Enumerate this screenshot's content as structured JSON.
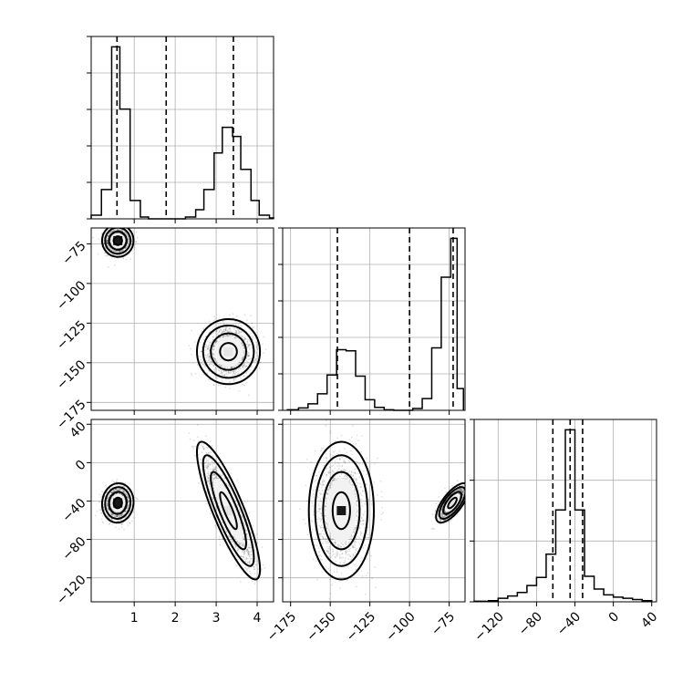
{
  "chart_data": {
    "type": "corner",
    "parameters": [
      "",
      "",
      ""
    ],
    "grid": true,
    "ranges": {
      "p0": [
        -0.05,
        4.4
      ],
      "p1": [
        -180,
        -65
      ],
      "p2": [
        -145,
        45
      ]
    },
    "ticks": {
      "p0": {
        "values": [
          1,
          2,
          3,
          4
        ],
        "labels": [
          "1",
          "2",
          "3",
          "4"
        ]
      },
      "p1_y": {
        "values": [
          -75,
          -100,
          -125,
          -150,
          -175
        ],
        "labels": [
          "−75",
          "−100",
          "−125",
          "−150",
          "−175"
        ]
      },
      "p1_x": {
        "values": [
          -175,
          -150,
          -125,
          -100,
          -75
        ],
        "labels": [
          "−175",
          "−150",
          "−125",
          "−100",
          "−75"
        ]
      },
      "p2_y": {
        "values": [
          40,
          0,
          -40,
          -80,
          -120
        ],
        "labels": [
          "40",
          "0",
          "−40",
          "−80",
          "−120"
        ]
      },
      "p2_x": {
        "values": [
          -120,
          -80,
          -40,
          0,
          40
        ],
        "labels": [
          "−120",
          "−80",
          "−40",
          "0",
          "40"
        ]
      }
    },
    "histograms": [
      {
        "param": "p0",
        "bin_edges": [
          -0.05,
          0.2,
          0.45,
          0.65,
          0.9,
          1.15,
          1.35,
          1.6,
          1.8,
          2.05,
          2.25,
          2.5,
          2.7,
          2.95,
          3.15,
          3.4,
          3.6,
          3.85,
          4.05,
          4.3,
          4.4
        ],
        "counts": [
          0.02,
          0.16,
          0.94,
          0.6,
          0.1,
          0.01,
          0,
          0,
          0,
          0,
          0.01,
          0.05,
          0.16,
          0.36,
          0.5,
          0.45,
          0.27,
          0.1,
          0.02,
          0.005
        ],
        "quantiles": [
          0.58,
          1.78,
          3.42
        ]
      },
      {
        "param": "p1",
        "bin_edges": [
          -177,
          -170,
          -164,
          -158,
          -152,
          -146,
          -140,
          -134,
          -128,
          -122,
          -116,
          -110,
          -104,
          -98,
          -92,
          -86,
          -80,
          -74,
          -70,
          -66
        ],
        "counts": [
          0.01,
          0.04,
          0.11,
          0.28,
          0.6,
          1.03,
          1.01,
          0.58,
          0.18,
          0.05,
          0.01,
          0,
          0,
          0.03,
          0.2,
          1.06,
          2.26,
          2.92,
          0.37
        ],
        "quantiles": [
          -145.5,
          -100,
          -72.5
        ]
      },
      {
        "param": "p2",
        "bin_edges": [
          -145,
          -130,
          -120,
          -110,
          -100,
          -90,
          -80,
          -70,
          -60,
          -50,
          -40,
          -30,
          -20,
          -10,
          0,
          10,
          20,
          30,
          40
        ],
        "counts": [
          0.005,
          0.01,
          0.03,
          0.05,
          0.08,
          0.14,
          0.21,
          0.41,
          0.79,
          1.48,
          0.79,
          0.22,
          0.11,
          0.06,
          0.04,
          0.03,
          0.02,
          0.01
        ],
        "quantiles": [
          -63,
          -45,
          -32
        ]
      }
    ],
    "joint": [
      {
        "x": "p0",
        "y": "p1",
        "clusters": [
          {
            "center": [
              0.6,
              -73
            ],
            "sd": [
              0.15,
              4
            ],
            "corr": 0
          },
          {
            "center": [
              3.3,
              -143
            ],
            "sd": [
              0.3,
              8
            ],
            "corr": 0
          }
        ]
      },
      {
        "x": "p0",
        "y": "p2",
        "clusters": [
          {
            "center": [
              0.6,
              -42
            ],
            "sd": [
              0.15,
              8
            ],
            "corr": 0.05
          },
          {
            "center": [
              3.3,
              -50
            ],
            "sd": [
              0.3,
              28
            ],
            "corr": -0.85
          }
        ]
      },
      {
        "x": "p1",
        "y": "p2",
        "clusters": [
          {
            "center": [
              -143,
              -50
            ],
            "sd": [
              8,
              28
            ],
            "corr": 0
          },
          {
            "center": [
              -73,
              -42
            ],
            "sd": [
              4,
              8
            ],
            "corr": 0.7
          }
        ]
      }
    ]
  }
}
